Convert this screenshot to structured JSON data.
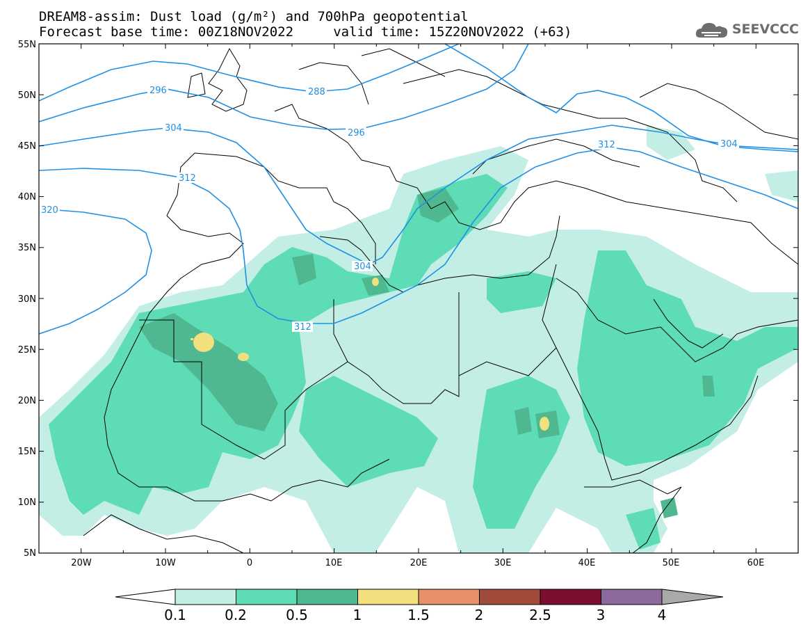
{
  "header": {
    "line1": "DREAM8-assim: Dust load (g/m²) and 700hPa geopotential",
    "line2": "Forecast base time: 00Z18NOV2022     valid time: 15Z20NOV2022 (+63)"
  },
  "logo": {
    "text": "SEEVCCC",
    "icon": "cloud-icon"
  },
  "map": {
    "lon_range": [
      -25,
      65
    ],
    "lat_range": [
      5,
      55
    ],
    "lat_labels": [
      "55N",
      "50N",
      "45N",
      "40N",
      "35N",
      "30N",
      "25N",
      "20N",
      "15N",
      "10N",
      "5N"
    ],
    "lon_labels": [
      "20W",
      "10W",
      "0",
      "10E",
      "20E",
      "30E",
      "40E",
      "50E",
      "60E"
    ],
    "contour_labels": [
      "296",
      "288",
      "304",
      "296",
      "312",
      "304",
      "320",
      "312",
      "312",
      "304"
    ]
  },
  "colorbar": {
    "labels": [
      "0.1",
      "0.2",
      "0.5",
      "1",
      "1.5",
      "2",
      "2.5",
      "3",
      "4"
    ],
    "colors": [
      "#c3eee6",
      "#5ddcb5",
      "#4fb890",
      "#f1e07d",
      "#e8906a",
      "#a14b3a",
      "#7a0f2e",
      "#8d6a9e"
    ],
    "under_color": "#ffffff",
    "over_color": "#a9a9a9"
  },
  "colors": {
    "contour": "#1e90e6",
    "coast": "#000000"
  }
}
